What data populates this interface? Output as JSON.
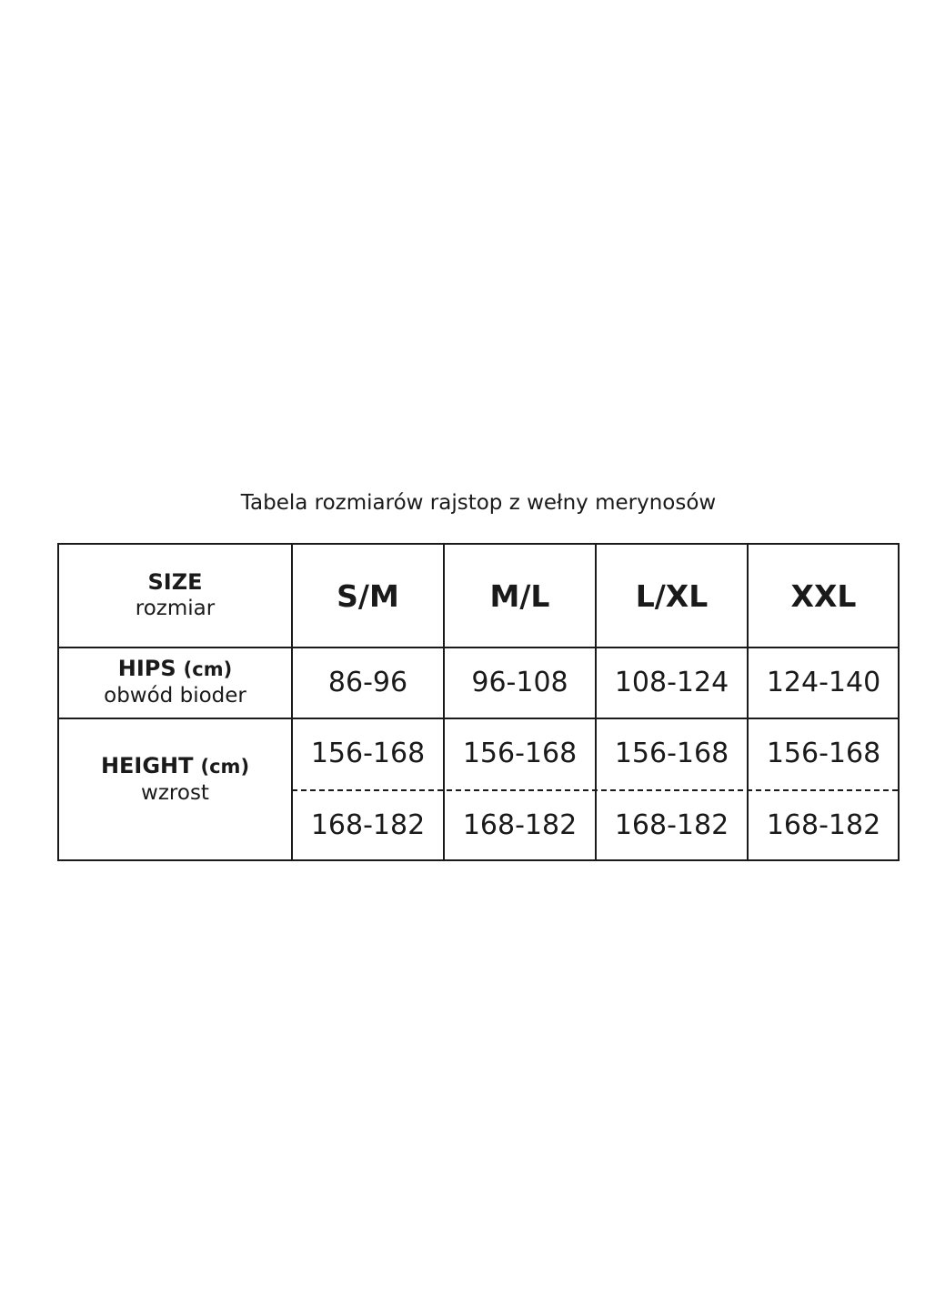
{
  "title": "Tabela rozmiarów rajstop z wełny merynosów",
  "row_labels": {
    "size": {
      "label": "SIZE",
      "sub": "rozmiar"
    },
    "hips": {
      "label": "HIPS",
      "unit": "(cm)",
      "sub": "obwód bioder"
    },
    "height": {
      "label": "HEIGHT",
      "unit": "(cm)",
      "sub": "wzrost"
    }
  },
  "sizes": [
    "S/M",
    "M/L",
    "L/XL",
    "XXL"
  ],
  "hips": [
    "86-96",
    "96-108",
    "108-124",
    "124-140"
  ],
  "height_1": [
    "156-168",
    "156-168",
    "156-168",
    "156-168"
  ],
  "height_2": [
    "168-182",
    "168-182",
    "168-182",
    "168-182"
  ]
}
